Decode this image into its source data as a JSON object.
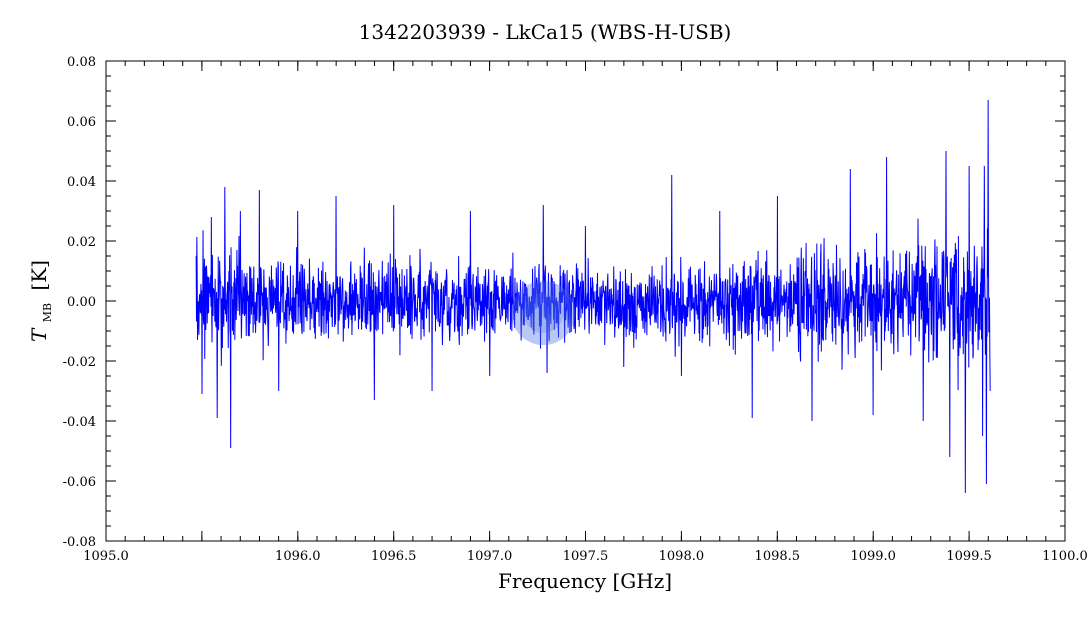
{
  "chart_data": {
    "type": "line",
    "title": "1342203939 - LkCa15 (WBS-H-USB)",
    "xlabel": "Frequency [GHz]",
    "ylabel": {
      "symbol": "T",
      "subscript": "MB",
      "unit": "[K]"
    },
    "xlim": [
      1095.0,
      1100.0
    ],
    "ylim": [
      -0.08,
      0.08
    ],
    "x_ticks": [
      "1095.0",
      "1096.0",
      "1096.5",
      "1097.0",
      "1097.5",
      "1098.0",
      "1098.5",
      "1099.0",
      "1099.5",
      "1100.0"
    ],
    "x_tick_values": [
      1095.0,
      1096.0,
      1096.5,
      1097.0,
      1097.5,
      1098.0,
      1098.5,
      1099.0,
      1099.5,
      1100.0
    ],
    "y_ticks": [
      "0.08",
      "0.06",
      "0.04",
      "0.02",
      "0.00",
      "-0.02",
      "-0.04",
      "-0.06",
      "-0.08"
    ],
    "y_tick_values": [
      0.08,
      0.06,
      0.04,
      0.02,
      0.0,
      -0.02,
      -0.04,
      -0.06,
      -0.08
    ],
    "grid": false,
    "series": [
      {
        "color": "#0000ff",
        "x_range": [
          1095.47,
          1099.61
        ],
        "mean": 0.0,
        "points": [
          [
            1095.47,
            0.015
          ],
          [
            1095.5,
            -0.031
          ],
          [
            1095.55,
            0.028
          ],
          [
            1095.58,
            -0.039
          ],
          [
            1095.62,
            0.038
          ],
          [
            1095.65,
            -0.049
          ],
          [
            1095.7,
            0.03
          ],
          [
            1095.8,
            0.037
          ],
          [
            1095.9,
            -0.03
          ],
          [
            1096.0,
            0.03
          ],
          [
            1096.2,
            0.035
          ],
          [
            1096.4,
            -0.033
          ],
          [
            1096.5,
            0.032
          ],
          [
            1096.7,
            -0.03
          ],
          [
            1096.9,
            0.03
          ],
          [
            1097.0,
            -0.025
          ],
          [
            1097.28,
            0.032
          ],
          [
            1097.3,
            -0.024
          ],
          [
            1097.5,
            0.025
          ],
          [
            1097.7,
            -0.022
          ],
          [
            1097.95,
            0.042
          ],
          [
            1098.0,
            -0.025
          ],
          [
            1098.2,
            0.03
          ],
          [
            1098.37,
            -0.039
          ],
          [
            1098.5,
            0.035
          ],
          [
            1098.68,
            -0.04
          ],
          [
            1098.88,
            0.044
          ],
          [
            1099.0,
            -0.038
          ],
          [
            1099.07,
            0.048
          ],
          [
            1099.26,
            -0.04
          ],
          [
            1099.38,
            0.05
          ],
          [
            1099.4,
            -0.052
          ],
          [
            1099.48,
            -0.064
          ],
          [
            1099.5,
            0.045
          ],
          [
            1099.57,
            -0.045
          ],
          [
            1099.58,
            0.045
          ],
          [
            1099.59,
            -0.061
          ],
          [
            1099.6,
            0.067
          ],
          [
            1099.61,
            -0.03
          ]
        ]
      }
    ],
    "annotations": [
      {
        "type": "translucent-circle",
        "x": 1097.28,
        "y": -0.004,
        "color": "#4a6fe0"
      }
    ]
  }
}
